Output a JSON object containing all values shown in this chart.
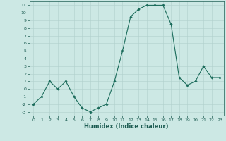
{
  "x": [
    0,
    1,
    2,
    3,
    4,
    5,
    6,
    7,
    8,
    9,
    10,
    11,
    12,
    13,
    14,
    15,
    16,
    17,
    18,
    19,
    20,
    21,
    22,
    23
  ],
  "y": [
    -2,
    -1,
    1,
    0,
    1,
    -1,
    -2.5,
    -3,
    -2.5,
    -2,
    1,
    5,
    9.5,
    10.5,
    11,
    11,
    11,
    8.5,
    1.5,
    0.5,
    1,
    3,
    1.5,
    1.5
  ],
  "line_color": "#1a6b5a",
  "marker_color": "#1a6b5a",
  "bg_color": "#cce8e4",
  "grid_color": "#b0d0cc",
  "xlabel": "Humidex (Indice chaleur)",
  "xlim": [
    -0.5,
    23.5
  ],
  "ylim": [
    -3.5,
    11.5
  ],
  "yticks": [
    -3,
    -2,
    -1,
    0,
    1,
    2,
    3,
    4,
    5,
    6,
    7,
    8,
    9,
    10,
    11
  ],
  "xticks": [
    0,
    1,
    2,
    3,
    4,
    5,
    6,
    7,
    8,
    9,
    10,
    11,
    12,
    13,
    14,
    15,
    16,
    17,
    18,
    19,
    20,
    21,
    22,
    23
  ],
  "tick_fontsize": 4.5,
  "xlabel_fontsize": 6.0
}
